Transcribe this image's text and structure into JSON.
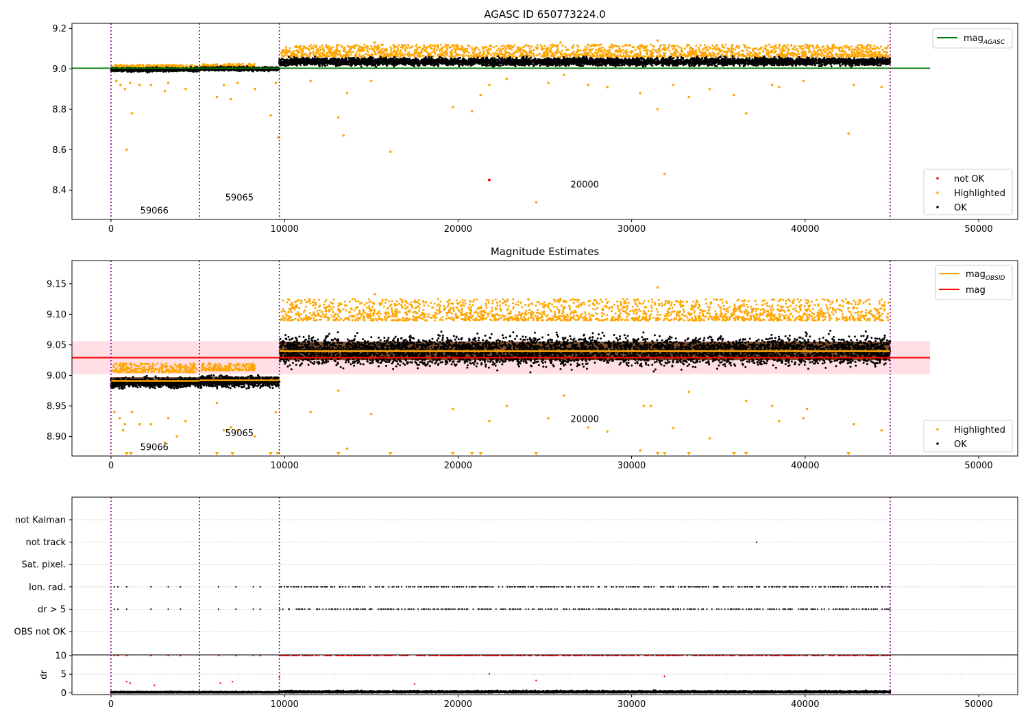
{
  "colors": {
    "ok": "#000000",
    "highlighted": "#ffa500",
    "not_ok": "#ff0000",
    "agasc_line": "#008000",
    "obsid_line": "#ffa500",
    "mag_line": "#ff0000",
    "mag_band": "#ffc0cb",
    "obsid_boundary": "#800080"
  },
  "chart_data": [
    {
      "type": "scatter",
      "title": "AGASC ID 650773224.0",
      "xlabel": "",
      "ylabel": "",
      "xlim": [
        -2250,
        52250
      ],
      "ylim": [
        8.255,
        9.225
      ],
      "xticks": [
        0,
        10000,
        20000,
        30000,
        40000,
        50000
      ],
      "yticks": [
        8.4,
        8.6,
        8.8,
        9.0,
        9.2
      ],
      "ytick_labels": [
        "8.4",
        "8.6",
        "8.8",
        "9.0",
        "9.2"
      ],
      "grid": false,
      "obsid_boundaries": [
        0,
        5100,
        9700,
        44900
      ],
      "obsid_labels": [
        {
          "text": "59066",
          "x": 2500,
          "y": 8.3
        },
        {
          "text": "59065",
          "x": 7400,
          "y": 8.365
        },
        {
          "text": "20000",
          "x": 27300,
          "y": 8.43
        }
      ],
      "lines": [
        {
          "name": "mag_AGASC",
          "color": "#008000",
          "x": [
            -2250,
            47200
          ],
          "y": [
            9.003,
            9.003
          ]
        }
      ],
      "line_legend": {
        "position": "upper right",
        "entries": [
          {
            "label": "mag",
            "sub": "AGASC",
            "color": "#008000"
          }
        ]
      },
      "point_legend": {
        "position": "lower right",
        "entries": [
          "not OK",
          "Highlighted",
          "OK"
        ]
      },
      "segments": [
        {
          "x": [
            0,
            5100
          ],
          "level": 8.996,
          "band": 0.009
        },
        {
          "x": [
            5100,
            9700
          ],
          "level": 9.0,
          "band": 0.009
        },
        {
          "x": [
            9700,
            44900
          ],
          "level": 9.035,
          "band": 0.018
        }
      ],
      "highlighted_upper": [
        {
          "x": [
            100,
            5000
          ],
          "y": [
            9.005,
            9.02
          ]
        },
        {
          "x": [
            5200,
            8300
          ],
          "y": [
            9.008,
            9.025
          ]
        },
        {
          "x": [
            9800,
            44800
          ],
          "y": [
            9.06,
            9.12
          ]
        }
      ],
      "highlighted_points": [
        {
          "x": 300,
          "y": 8.94
        },
        {
          "x": 550,
          "y": 8.92
        },
        {
          "x": 800,
          "y": 8.9
        },
        {
          "x": 900,
          "y": 8.6
        },
        {
          "x": 1100,
          "y": 8.93
        },
        {
          "x": 1200,
          "y": 8.78
        },
        {
          "x": 1650,
          "y": 8.92
        },
        {
          "x": 2300,
          "y": 8.92
        },
        {
          "x": 3100,
          "y": 8.89
        },
        {
          "x": 3300,
          "y": 8.93
        },
        {
          "x": 4300,
          "y": 8.9
        },
        {
          "x": 6100,
          "y": 8.86
        },
        {
          "x": 6500,
          "y": 8.92
        },
        {
          "x": 6900,
          "y": 8.85
        },
        {
          "x": 7300,
          "y": 8.93
        },
        {
          "x": 8300,
          "y": 8.9
        },
        {
          "x": 9200,
          "y": 8.77
        },
        {
          "x": 9500,
          "y": 8.93
        },
        {
          "x": 9650,
          "y": 8.66
        },
        {
          "x": 11500,
          "y": 8.94
        },
        {
          "x": 13100,
          "y": 8.76
        },
        {
          "x": 13400,
          "y": 8.67
        },
        {
          "x": 13600,
          "y": 8.88
        },
        {
          "x": 15000,
          "y": 8.94
        },
        {
          "x": 16100,
          "y": 8.59
        },
        {
          "x": 19700,
          "y": 8.81
        },
        {
          "x": 20800,
          "y": 8.79
        },
        {
          "x": 21300,
          "y": 8.87
        },
        {
          "x": 21800,
          "y": 8.92
        },
        {
          "x": 22800,
          "y": 8.95
        },
        {
          "x": 24500,
          "y": 8.34
        },
        {
          "x": 25200,
          "y": 8.93
        },
        {
          "x": 26100,
          "y": 8.97
        },
        {
          "x": 27500,
          "y": 8.92
        },
        {
          "x": 28600,
          "y": 8.91
        },
        {
          "x": 30500,
          "y": 8.88
        },
        {
          "x": 31500,
          "y": 8.8
        },
        {
          "x": 31900,
          "y": 8.48
        },
        {
          "x": 32400,
          "y": 8.92
        },
        {
          "x": 33300,
          "y": 8.86
        },
        {
          "x": 34500,
          "y": 8.9
        },
        {
          "x": 35900,
          "y": 8.87
        },
        {
          "x": 36600,
          "y": 8.78
        },
        {
          "x": 38100,
          "y": 8.92
        },
        {
          "x": 38500,
          "y": 8.91
        },
        {
          "x": 39900,
          "y": 8.94
        },
        {
          "x": 42500,
          "y": 8.68
        },
        {
          "x": 42800,
          "y": 8.92
        },
        {
          "x": 44400,
          "y": 8.91
        },
        {
          "x": 31500,
          "y": 9.14
        },
        {
          "x": 25900,
          "y": 9.13
        },
        {
          "x": 15200,
          "y": 9.13
        }
      ],
      "not_ok_points": [
        {
          "x": 21800,
          "y": 8.45
        }
      ]
    },
    {
      "type": "scatter",
      "title": "Magnitude Estimates",
      "xlabel": "",
      "ylabel": "",
      "xlim": [
        -2250,
        52250
      ],
      "ylim": [
        8.868,
        9.188
      ],
      "xticks": [
        0,
        10000,
        20000,
        30000,
        40000,
        50000
      ],
      "yticks": [
        8.9,
        8.95,
        9.0,
        9.05,
        9.1,
        9.15
      ],
      "ytick_labels": [
        "8.90",
        "8.95",
        "9.00",
        "9.05",
        "9.10",
        "9.15"
      ],
      "grid": false,
      "obsid_boundaries": [
        0,
        5100,
        9700,
        44900
      ],
      "obsid_labels": [
        {
          "text": "59066",
          "x": 2500,
          "y": 8.883
        },
        {
          "text": "59065",
          "x": 7400,
          "y": 8.906
        },
        {
          "text": "20000",
          "x": 27300,
          "y": 8.929
        }
      ],
      "mag": 9.029,
      "mag_band": [
        9.002,
        9.056
      ],
      "mag_extent": [
        -2250,
        47200
      ],
      "obsid_mags": [
        {
          "x": [
            0,
            5100
          ],
          "y": 8.991
        },
        {
          "x": [
            5100,
            9700
          ],
          "y": 8.992
        },
        {
          "x": [
            9700,
            44900
          ],
          "y": 9.04
        }
      ],
      "line_legend": {
        "position": "upper right",
        "entries": [
          {
            "label": "mag",
            "sub": "OBSID",
            "color": "#ffa500"
          },
          {
            "label": "mag",
            "sub": "",
            "color": "#ff0000"
          }
        ]
      },
      "point_legend": {
        "position": "lower right",
        "entries": [
          "Highlighted",
          "OK"
        ]
      },
      "segments": [
        {
          "x": [
            0,
            5100
          ],
          "level": 8.988,
          "band": 0.014
        },
        {
          "x": [
            5100,
            9700
          ],
          "level": 8.99,
          "band": 0.016
        },
        {
          "x": [
            9700,
            44900
          ],
          "level": 9.04,
          "band": 0.04
        }
      ],
      "highlighted_upper": [
        {
          "x": [
            100,
            5000
          ],
          "y": [
            9.005,
            9.02
          ]
        },
        {
          "x": [
            5200,
            8300
          ],
          "y": [
            9.008,
            9.02
          ]
        },
        {
          "x": [
            9800,
            44800
          ],
          "y": [
            9.09,
            9.125
          ]
        }
      ],
      "highlighted_points": [
        {
          "x": 200,
          "y": 8.94
        },
        {
          "x": 500,
          "y": 8.93
        },
        {
          "x": 700,
          "y": 8.91
        },
        {
          "x": 800,
          "y": 8.92
        },
        {
          "x": 1200,
          "y": 8.94
        },
        {
          "x": 1650,
          "y": 8.92
        },
        {
          "x": 2300,
          "y": 8.92
        },
        {
          "x": 3100,
          "y": 8.89
        },
        {
          "x": 3300,
          "y": 8.93
        },
        {
          "x": 3800,
          "y": 8.9
        },
        {
          "x": 4300,
          "y": 8.925
        },
        {
          "x": 6100,
          "y": 8.955
        },
        {
          "x": 6500,
          "y": 8.91
        },
        {
          "x": 6900,
          "y": 8.915
        },
        {
          "x": 7300,
          "y": 8.91
        },
        {
          "x": 8300,
          "y": 8.9
        },
        {
          "x": 9500,
          "y": 8.94
        },
        {
          "x": 11500,
          "y": 8.94
        },
        {
          "x": 13100,
          "y": 8.975
        },
        {
          "x": 13600,
          "y": 8.88
        },
        {
          "x": 15000,
          "y": 8.937
        },
        {
          "x": 19700,
          "y": 8.945
        },
        {
          "x": 21800,
          "y": 8.925
        },
        {
          "x": 22800,
          "y": 8.95
        },
        {
          "x": 25200,
          "y": 8.93
        },
        {
          "x": 26100,
          "y": 8.967
        },
        {
          "x": 27500,
          "y": 8.915
        },
        {
          "x": 28600,
          "y": 8.908
        },
        {
          "x": 30500,
          "y": 8.877
        },
        {
          "x": 30700,
          "y": 8.95
        },
        {
          "x": 31100,
          "y": 8.95
        },
        {
          "x": 32400,
          "y": 8.914
        },
        {
          "x": 33300,
          "y": 8.973
        },
        {
          "x": 34500,
          "y": 8.897
        },
        {
          "x": 36600,
          "y": 8.958
        },
        {
          "x": 38100,
          "y": 8.95
        },
        {
          "x": 38500,
          "y": 8.925
        },
        {
          "x": 39900,
          "y": 8.93
        },
        {
          "x": 40100,
          "y": 8.945
        },
        {
          "x": 42800,
          "y": 8.92
        },
        {
          "x": 44400,
          "y": 8.91
        },
        {
          "x": 31500,
          "y": 9.144
        },
        {
          "x": 15200,
          "y": 9.133
        },
        {
          "x": 25900,
          "y": 9.125
        }
      ],
      "below_range_markers": [
        900,
        1150,
        6100,
        7000,
        9200,
        9600,
        13100,
        16100,
        19700,
        20800,
        21300,
        24500,
        31500,
        31900,
        33300,
        35900,
        36600,
        42500
      ]
    },
    {
      "type": "scatter",
      "title": "",
      "xlabel": "",
      "ylabel": "",
      "xlim": [
        -2250,
        52250
      ],
      "grid": true,
      "categories": [
        "not Kalman",
        "not track",
        "Sat. pixel.",
        "Ion. rad.",
        "dr > 5",
        "OBS not OK"
      ],
      "flag_points": {
        "not Kalman": [],
        "not track": [
          37200
        ],
        "Sat. pixel.": [],
        "Ion. rad.": [
          200,
          400,
          900,
          2300,
          3300,
          4000,
          6200,
          7200,
          8200,
          8600
        ],
        "dr > 5": [
          200,
          400,
          900,
          2300,
          3300,
          4000,
          6200,
          7200,
          8200,
          8600
        ],
        "OBS not OK": []
      },
      "dense_flag_range": [
        9700,
        44900
      ],
      "obsid_boundaries": [
        0,
        5100,
        9700,
        44900
      ]
    },
    {
      "type": "scatter",
      "title": "",
      "xlabel": "",
      "ylabel": "dr",
      "xlim": [
        -2250,
        52250
      ],
      "ylim": [
        -0.5,
        10.2
      ],
      "xticks": [
        0,
        10000,
        20000,
        30000,
        40000,
        50000
      ],
      "yticks": [
        0,
        5,
        10
      ],
      "ytick_labels": [
        "0",
        "5",
        "10"
      ],
      "grid": true,
      "obsid_boundaries": [
        0,
        5100,
        9700,
        44900
      ],
      "capped_value": 10,
      "capped_x": [
        200,
        400,
        900,
        2300,
        3300,
        4000,
        6200,
        7200,
        8200,
        8600
      ],
      "dense_capped_range": [
        9700,
        44900
      ],
      "dr_outliers": [
        {
          "x": 900,
          "y": 3.0
        },
        {
          "x": 1100,
          "y": 2.6
        },
        {
          "x": 2500,
          "y": 2.0
        },
        {
          "x": 6300,
          "y": 2.6
        },
        {
          "x": 7000,
          "y": 3.0
        },
        {
          "x": 9700,
          "y": 4.1
        },
        {
          "x": 17500,
          "y": 2.4
        },
        {
          "x": 21800,
          "y": 5.1
        },
        {
          "x": 24500,
          "y": 3.3
        },
        {
          "x": 31900,
          "y": 4.4
        }
      ]
    }
  ]
}
